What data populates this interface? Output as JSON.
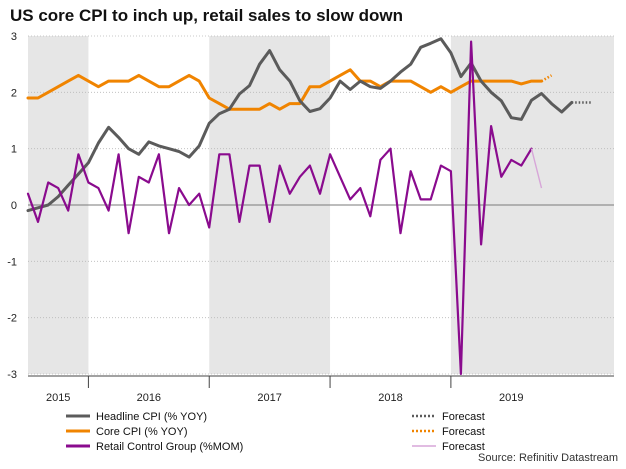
{
  "title": "US core CPI to inch up, retail sales to slow down",
  "source": "Source: Refinitiv Datastream",
  "chart_data": {
    "type": "line",
    "title": "US core CPI to inch up, retail sales to slow down",
    "ylim": [
      -3,
      3
    ],
    "yticks": [
      3,
      2,
      1,
      0,
      -1,
      -2,
      -3
    ],
    "x_range": [
      2015.0,
      2019.85
    ],
    "shaded_years": [
      [
        2015.0,
        2015.5
      ],
      [
        2016.5,
        2017.5
      ],
      [
        2018.5,
        2019.85
      ]
    ],
    "year_labels": [
      {
        "label": "2015",
        "x": 2015.25
      },
      {
        "label": "2016",
        "x": 2016.0
      },
      {
        "label": "2017",
        "x": 2017.0
      },
      {
        "label": "2018",
        "x": 2018.0
      },
      {
        "label": "2019",
        "x": 2019.0
      }
    ],
    "x_separators": [
      2015.5,
      2016.5,
      2017.5,
      2018.5
    ],
    "colors": {
      "headline": "#5b5b5b",
      "core": "#f08400",
      "retail": "#8a0b8e",
      "retail_forecast": "#d7a6d8"
    },
    "series": [
      {
        "name": "Headline CPI (% YOY)",
        "key": "headline",
        "points": [
          [
            2015.0,
            -0.1
          ],
          [
            2015.083,
            -0.05
          ],
          [
            2015.167,
            0.0
          ],
          [
            2015.25,
            0.15
          ],
          [
            2015.333,
            0.35
          ],
          [
            2015.417,
            0.55
          ],
          [
            2015.5,
            0.75
          ],
          [
            2015.583,
            1.1
          ],
          [
            2015.667,
            1.38
          ],
          [
            2015.75,
            1.2
          ],
          [
            2015.833,
            1.0
          ],
          [
            2015.917,
            0.9
          ],
          [
            2016.0,
            1.12
          ],
          [
            2016.083,
            1.05
          ],
          [
            2016.167,
            1.0
          ],
          [
            2016.25,
            0.95
          ],
          [
            2016.333,
            0.85
          ],
          [
            2016.417,
            1.05
          ],
          [
            2016.5,
            1.45
          ],
          [
            2016.583,
            1.62
          ],
          [
            2016.667,
            1.7
          ],
          [
            2016.75,
            1.97
          ],
          [
            2016.833,
            2.12
          ],
          [
            2016.917,
            2.5
          ],
          [
            2017.0,
            2.74
          ],
          [
            2017.083,
            2.4
          ],
          [
            2017.167,
            2.2
          ],
          [
            2017.25,
            1.85
          ],
          [
            2017.333,
            1.66
          ],
          [
            2017.417,
            1.71
          ],
          [
            2017.5,
            1.9
          ],
          [
            2017.583,
            2.2
          ],
          [
            2017.667,
            2.05
          ],
          [
            2017.75,
            2.2
          ],
          [
            2017.833,
            2.1
          ],
          [
            2017.917,
            2.07
          ],
          [
            2018.0,
            2.2
          ],
          [
            2018.083,
            2.36
          ],
          [
            2018.167,
            2.5
          ],
          [
            2018.25,
            2.8
          ],
          [
            2018.333,
            2.87
          ],
          [
            2018.417,
            2.95
          ],
          [
            2018.5,
            2.7
          ],
          [
            2018.583,
            2.28
          ],
          [
            2018.667,
            2.52
          ],
          [
            2018.75,
            2.2
          ],
          [
            2018.833,
            2.0
          ],
          [
            2018.917,
            1.85
          ],
          [
            2019.0,
            1.55
          ],
          [
            2019.083,
            1.52
          ],
          [
            2019.167,
            1.86
          ],
          [
            2019.25,
            1.98
          ],
          [
            2019.333,
            1.8
          ],
          [
            2019.417,
            1.65
          ],
          [
            2019.5,
            1.82
          ]
        ],
        "forecast": [
          [
            2019.5,
            1.82
          ],
          [
            2019.667,
            1.82
          ]
        ]
      },
      {
        "name": "Core CPI (% YOY)",
        "key": "core",
        "points": [
          [
            2015.0,
            1.9
          ],
          [
            2015.083,
            1.9
          ],
          [
            2015.167,
            2.0
          ],
          [
            2015.25,
            2.1
          ],
          [
            2015.333,
            2.2
          ],
          [
            2015.417,
            2.3
          ],
          [
            2015.5,
            2.2
          ],
          [
            2015.583,
            2.1
          ],
          [
            2015.667,
            2.2
          ],
          [
            2015.75,
            2.2
          ],
          [
            2015.833,
            2.2
          ],
          [
            2015.917,
            2.3
          ],
          [
            2016.0,
            2.2
          ],
          [
            2016.083,
            2.1
          ],
          [
            2016.167,
            2.1
          ],
          [
            2016.25,
            2.2
          ],
          [
            2016.333,
            2.3
          ],
          [
            2016.417,
            2.2
          ],
          [
            2016.5,
            1.9
          ],
          [
            2016.583,
            1.8
          ],
          [
            2016.667,
            1.7
          ],
          [
            2016.75,
            1.7
          ],
          [
            2016.833,
            1.7
          ],
          [
            2016.917,
            1.7
          ],
          [
            2017.0,
            1.8
          ],
          [
            2017.083,
            1.7
          ],
          [
            2017.167,
            1.8
          ],
          [
            2017.25,
            1.8
          ],
          [
            2017.333,
            2.1
          ],
          [
            2017.417,
            2.1
          ],
          [
            2017.5,
            2.2
          ],
          [
            2017.583,
            2.3
          ],
          [
            2017.667,
            2.4
          ],
          [
            2017.75,
            2.2
          ],
          [
            2017.833,
            2.2
          ],
          [
            2017.917,
            2.1
          ],
          [
            2018.0,
            2.2
          ],
          [
            2018.083,
            2.2
          ],
          [
            2018.167,
            2.2
          ],
          [
            2018.25,
            2.1
          ],
          [
            2018.333,
            2.0
          ],
          [
            2018.417,
            2.1
          ],
          [
            2018.5,
            2.0
          ],
          [
            2018.583,
            2.1
          ],
          [
            2018.667,
            2.2
          ],
          [
            2018.75,
            2.2
          ],
          [
            2018.833,
            2.2
          ],
          [
            2018.917,
            2.2
          ],
          [
            2019.0,
            2.2
          ],
          [
            2019.083,
            2.15
          ],
          [
            2019.167,
            2.2
          ],
          [
            2019.25,
            2.2
          ]
        ],
        "forecast": [
          [
            2019.25,
            2.2
          ],
          [
            2019.333,
            2.3
          ]
        ]
      },
      {
        "name": "Retail Control Group (%MOM)",
        "key": "retail",
        "points": [
          [
            2015.0,
            0.2
          ],
          [
            2015.083,
            -0.3
          ],
          [
            2015.167,
            0.4
          ],
          [
            2015.25,
            0.3
          ],
          [
            2015.333,
            -0.1
          ],
          [
            2015.417,
            0.9
          ],
          [
            2015.5,
            0.4
          ],
          [
            2015.583,
            0.3
          ],
          [
            2015.667,
            -0.1
          ],
          [
            2015.75,
            0.9
          ],
          [
            2015.833,
            -0.5
          ],
          [
            2015.917,
            0.5
          ],
          [
            2016.0,
            0.4
          ],
          [
            2016.083,
            0.9
          ],
          [
            2016.167,
            -0.5
          ],
          [
            2016.25,
            0.3
          ],
          [
            2016.333,
            0.0
          ],
          [
            2016.417,
            0.2
          ],
          [
            2016.5,
            -0.4
          ],
          [
            2016.583,
            0.9
          ],
          [
            2016.667,
            0.9
          ],
          [
            2016.75,
            -0.3
          ],
          [
            2016.833,
            0.7
          ],
          [
            2016.917,
            0.7
          ],
          [
            2017.0,
            -0.3
          ],
          [
            2017.083,
            0.7
          ],
          [
            2017.167,
            0.2
          ],
          [
            2017.25,
            0.5
          ],
          [
            2017.333,
            0.7
          ],
          [
            2017.417,
            0.2
          ],
          [
            2017.5,
            0.9
          ],
          [
            2017.583,
            0.5
          ],
          [
            2017.667,
            0.1
          ],
          [
            2017.75,
            0.3
          ],
          [
            2017.833,
            -0.2
          ],
          [
            2017.917,
            0.8
          ],
          [
            2018.0,
            1.0
          ],
          [
            2018.083,
            -0.5
          ],
          [
            2018.167,
            0.6
          ],
          [
            2018.25,
            0.1
          ],
          [
            2018.333,
            0.1
          ],
          [
            2018.417,
            0.7
          ],
          [
            2018.5,
            0.6
          ],
          [
            2018.583,
            -3.0
          ],
          [
            2018.667,
            2.9
          ],
          [
            2018.75,
            -0.7
          ],
          [
            2018.833,
            1.4
          ],
          [
            2018.917,
            0.5
          ],
          [
            2019.0,
            0.8
          ],
          [
            2019.083,
            0.7
          ],
          [
            2019.167,
            1.0
          ]
        ],
        "forecast": [
          [
            2019.167,
            1.0
          ],
          [
            2019.25,
            0.3
          ]
        ]
      }
    ],
    "legend": {
      "placement": "bottom",
      "entries": [
        {
          "label": "Headline CPI (% YOY)",
          "key": "headline",
          "style": "solid"
        },
        {
          "label": "Core CPI (% YOY)",
          "key": "core",
          "style": "solid"
        },
        {
          "label": "Retail Control Group (%MOM)",
          "key": "retail",
          "style": "solid"
        },
        {
          "label": "Forecast",
          "key": "headline",
          "style": "dotted"
        },
        {
          "label": "Forecast",
          "key": "core",
          "style": "dotted"
        },
        {
          "label": "Forecast",
          "key": "retail_forecast",
          "style": "solid"
        }
      ]
    }
  }
}
